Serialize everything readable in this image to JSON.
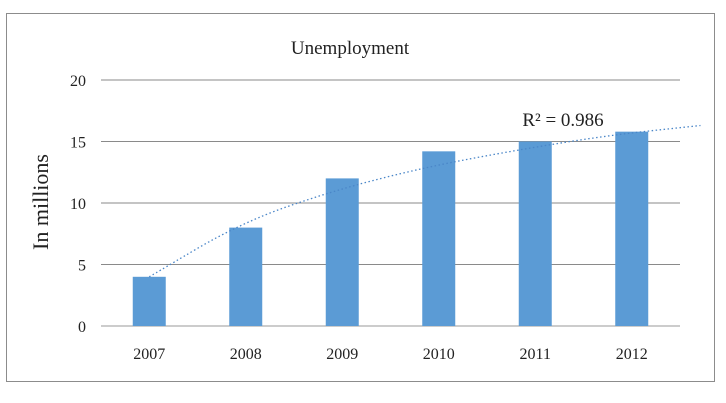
{
  "chart_data": {
    "type": "bar",
    "title": "Unemployment",
    "xlabel": "",
    "ylabel": "In millions",
    "categories": [
      "2007",
      "2008",
      "2009",
      "2010",
      "2011",
      "2012"
    ],
    "values": [
      4.0,
      8.0,
      12.0,
      14.2,
      15.0,
      15.8
    ],
    "ylim": [
      0,
      20
    ],
    "yticks": [
      "0",
      "5",
      "10",
      "15",
      "20"
    ],
    "grid": true,
    "legend": "none",
    "bar_color": "#5b9bd5",
    "trendline": {
      "type": "logarithmic",
      "style": "dotted",
      "color": "#4a86c8",
      "label": "R² = 0.986",
      "values": [
        4.0,
        8.4,
        11.0,
        12.9,
        14.3,
        15.5,
        16.3
      ]
    }
  }
}
